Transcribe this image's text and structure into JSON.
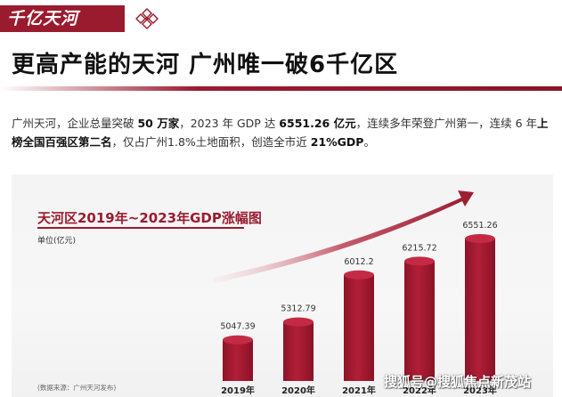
{
  "header": {
    "tag": "千亿天河",
    "headline": "更高产能的天河 广州唯一破6千亿区"
  },
  "paragraph": {
    "p1": "广州天河，企业总量突破 ",
    "p1_b1": "50 万家",
    "p2": "，2023 年 GDP 达 ",
    "p2_b2": "6551.26 亿元",
    "p3": "，连续多年荣登广州第一，连续 6 年",
    "p3_b3": "上榜全国百强区第二名",
    "p4": "，仅占广州1.8%土地面积，创造全市近 ",
    "p4_b4": "21%GDP",
    "p5": "。"
  },
  "chart_data": {
    "type": "bar",
    "title": "天河区2019年~2023年GDP涨幅图",
    "ylabel": "单位(亿元)",
    "categories": [
      "2019年",
      "2020年",
      "2021年",
      "2022年",
      "2023年"
    ],
    "values": [
      5047.39,
      5312.79,
      6012.2,
      6215.72,
      6551.26
    ],
    "value_labels": [
      "5047.39",
      "5312.79",
      "6012.2",
      "6215.72",
      "6551.26"
    ],
    "source": "(数据来源：广州天河发布)",
    "grid": false,
    "legend": "none"
  },
  "watermark": "搜狐号@搜狐焦点新茂站",
  "colors": {
    "accent": "#9a1b2e",
    "bar_top": "#c42a44",
    "bar_body": "#a3182f"
  }
}
